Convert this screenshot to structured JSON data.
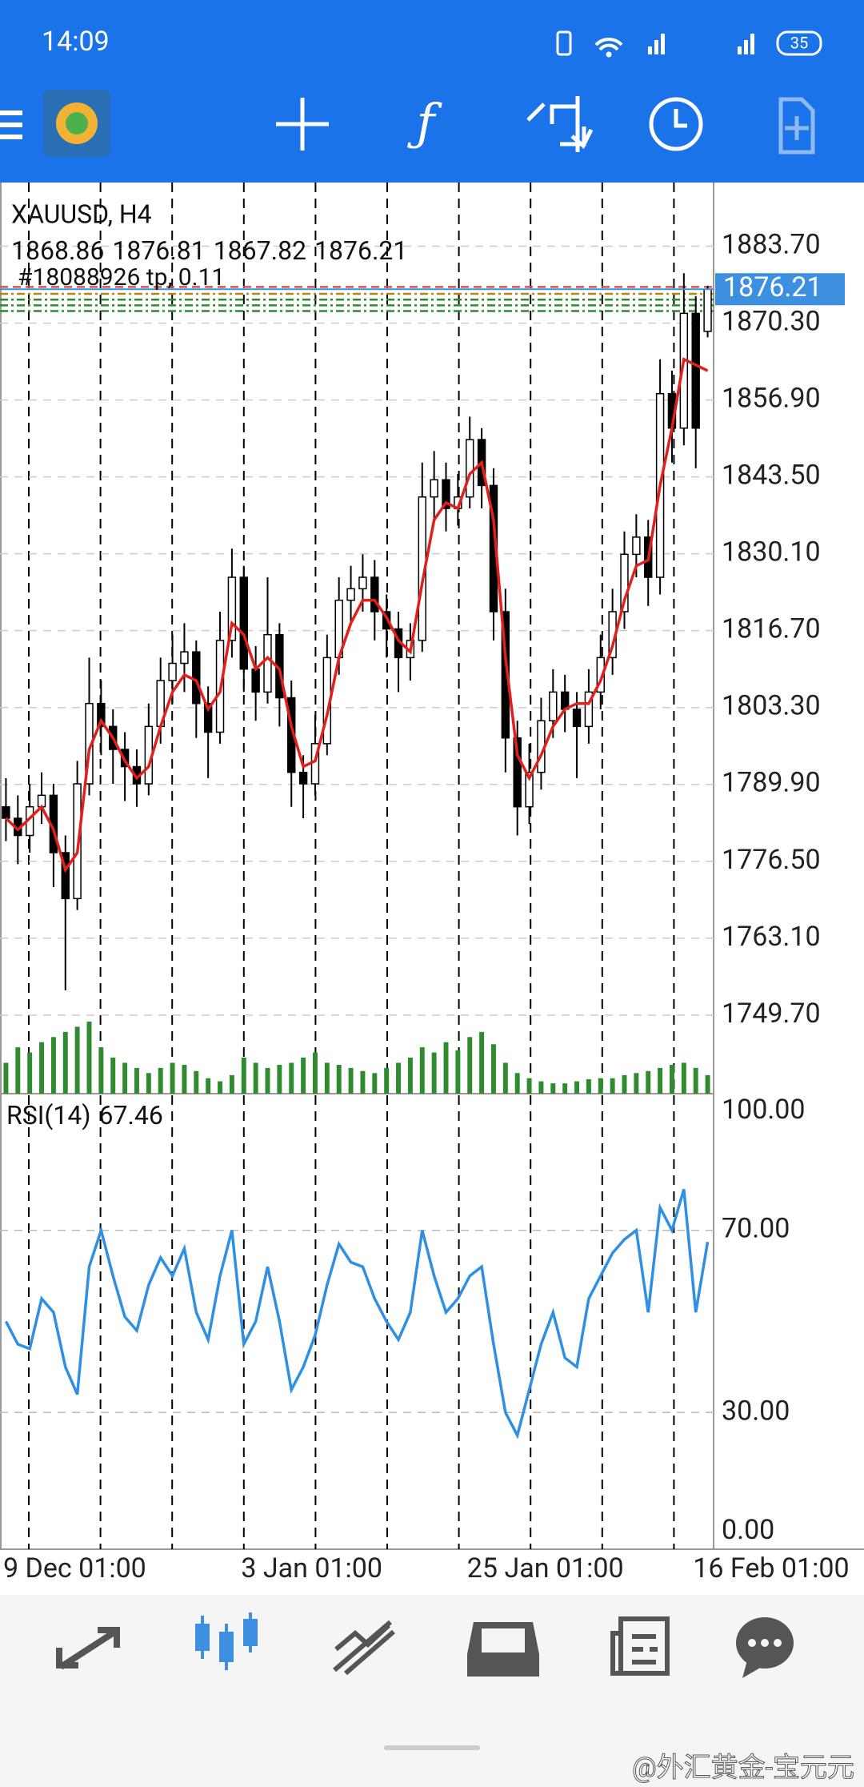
{
  "status_bar": {
    "time": "14:09",
    "battery": "35"
  },
  "chart_data": [
    {
      "type": "candlestick",
      "title": "XAUUSD, H4",
      "order_label": "#18088926 tp, 0.11",
      "categories": [
        "9 Dec 01:00",
        null,
        null,
        null,
        null,
        null,
        null,
        null,
        null,
        null,
        null,
        null,
        null,
        null,
        null,
        null,
        null,
        null,
        null,
        null,
        "3 Jan 01:00",
        null,
        null,
        null,
        null,
        null,
        null,
        null,
        null,
        null,
        null,
        null,
        null,
        null,
        null,
        null,
        null,
        null,
        null,
        "25 Jan 01:00",
        null,
        null,
        null,
        null,
        null,
        null,
        null,
        null,
        null,
        null,
        null,
        null,
        null,
        null,
        null,
        null,
        null,
        null,
        "16 Feb 01:00",
        null
      ],
      "open": [
        1786,
        1784,
        1781,
        1786,
        1788,
        1778,
        1770,
        1790,
        1804,
        1800,
        1796,
        1793,
        1790,
        1800,
        1808,
        1811,
        1813,
        1804,
        1799,
        1815,
        1826,
        1810,
        1806,
        1816,
        1805,
        1792,
        1790,
        1797,
        1812,
        1822,
        1824,
        1826,
        1820,
        1817,
        1812,
        1815,
        1840,
        1843,
        1838,
        1840,
        1850,
        1842,
        1820,
        1798,
        1786,
        1792,
        1801,
        1806,
        1803,
        1800,
        1806,
        1812,
        1820,
        1830,
        1833,
        1826,
        1858,
        1852,
        1872,
        1868.86
      ],
      "high": [
        1791,
        1788,
        1790,
        1792,
        1790,
        1781,
        1794,
        1812,
        1808,
        1803,
        1799,
        1796,
        1804,
        1812,
        1816,
        1818,
        1815,
        1807,
        1820,
        1831,
        1828,
        1814,
        1826,
        1818,
        1808,
        1795,
        1802,
        1816,
        1826,
        1828,
        1830,
        1829,
        1823,
        1820,
        1818,
        1846,
        1848,
        1846,
        1844,
        1854,
        1852,
        1845,
        1824,
        1801,
        1797,
        1805,
        1810,
        1809,
        1806,
        1810,
        1816,
        1824,
        1834,
        1837,
        1836,
        1864,
        1862,
        1879,
        1875,
        1876.81
      ],
      "low": [
        1780,
        1776,
        1778,
        1783,
        1772,
        1754,
        1768,
        1788,
        1795,
        1790,
        1787,
        1786,
        1788,
        1797,
        1804,
        1806,
        1798,
        1791,
        1797,
        1812,
        1806,
        1801,
        1804,
        1800,
        1786,
        1784,
        1788,
        1795,
        1809,
        1818,
        1820,
        1815,
        1812,
        1806,
        1808,
        1813,
        1836,
        1834,
        1835,
        1838,
        1838,
        1815,
        1792,
        1781,
        1783,
        1789,
        1798,
        1799,
        1791,
        1797,
        1803,
        1809,
        1817,
        1826,
        1821,
        1823,
        1846,
        1849,
        1845,
        1867.82
      ],
      "close": [
        1784,
        1781,
        1786,
        1788,
        1778,
        1770,
        1790,
        1804,
        1800,
        1796,
        1793,
        1790,
        1800,
        1808,
        1811,
        1813,
        1804,
        1799,
        1815,
        1826,
        1810,
        1806,
        1816,
        1805,
        1792,
        1790,
        1797,
        1812,
        1822,
        1824,
        1826,
        1820,
        1817,
        1812,
        1815,
        1840,
        1843,
        1838,
        1840,
        1850,
        1842,
        1820,
        1798,
        1786,
        1792,
        1801,
        1806,
        1803,
        1800,
        1806,
        1812,
        1820,
        1830,
        1833,
        1826,
        1858,
        1852,
        1872,
        1852,
        1876.21
      ],
      "candle_color": "#000000",
      "ma": {
        "color": "#e0201b",
        "values": [
          1784,
          1782,
          1784,
          1786,
          1782,
          1775,
          1778,
          1796,
          1801,
          1798,
          1794,
          1791,
          1793,
          1800,
          1806,
          1809,
          1808,
          1803,
          1806,
          1818,
          1816,
          1810,
          1812,
          1810,
          1800,
          1793,
          1794,
          1802,
          1812,
          1818,
          1822,
          1822,
          1819,
          1815,
          1813,
          1825,
          1836,
          1839,
          1838,
          1844,
          1846,
          1836,
          1812,
          1795,
          1791,
          1795,
          1800,
          1803,
          1804,
          1804,
          1808,
          1814,
          1822,
          1828,
          1829,
          1842,
          1852,
          1864,
          1863,
          1862
        ]
      },
      "volume": {
        "color": "#2e8b2e",
        "values": [
          30,
          45,
          40,
          50,
          55,
          60,
          65,
          70,
          45,
          35,
          30,
          25,
          20,
          25,
          30,
          28,
          22,
          15,
          12,
          18,
          35,
          30,
          25,
          28,
          30,
          35,
          40,
          30,
          28,
          25,
          22,
          20,
          25,
          30,
          35,
          45,
          40,
          50,
          42,
          55,
          60,
          48,
          30,
          20,
          15,
          12,
          10,
          10,
          12,
          14,
          15,
          15,
          18,
          20,
          22,
          25,
          28,
          30,
          25,
          18
        ]
      },
      "order_levels": [
        {
          "value": 1876.6,
          "color": "#d9534f"
        },
        {
          "value": 1875.4,
          "color": "#b8860b"
        },
        {
          "value": 1874.4,
          "color": "#2e8b2e"
        },
        {
          "value": 1873.4,
          "color": "#2e8b2e"
        },
        {
          "value": 1872.4,
          "color": "#2e8b2e"
        }
      ],
      "last_price_color": "#3d8fe0",
      "ylim": [
        1736.0,
        1894.8
      ],
      "yticks": [
        {
          "value": 1883.7,
          "label": "1883.70"
        },
        {
          "value": 1870.3,
          "label": "1870.30"
        },
        {
          "value": 1856.9,
          "label": "1856.90"
        },
        {
          "value": 1843.5,
          "label": "1843.50"
        },
        {
          "value": 1830.1,
          "label": "1830.10"
        },
        {
          "value": 1816.7,
          "label": "1816.70"
        },
        {
          "value": 1803.3,
          "label": "1803.30"
        },
        {
          "value": 1789.9,
          "label": "1789.90"
        },
        {
          "value": 1776.5,
          "label": "1776.50"
        },
        {
          "value": 1763.1,
          "label": "1763.10"
        },
        {
          "value": 1749.7,
          "label": "1749.70"
        }
      ],
      "grid": true
    },
    {
      "type": "line",
      "title": "RSI(14)",
      "color": "#2f8fe3",
      "values": [
        50,
        45,
        44,
        55,
        52,
        40,
        34,
        62,
        70,
        60,
        51,
        48,
        58,
        64,
        60,
        66,
        52,
        46,
        60,
        70,
        45,
        50,
        62,
        50,
        35,
        40,
        47,
        58,
        67,
        63,
        62,
        55,
        50,
        46,
        52,
        70,
        60,
        52,
        55,
        60,
        62,
        45,
        30,
        25,
        35,
        45,
        52,
        42,
        40,
        55,
        60,
        65,
        68,
        70,
        52,
        75,
        70,
        79,
        52,
        67.46
      ],
      "ylim": [
        0,
        100
      ],
      "yticks": [
        {
          "value": 100,
          "label": "100.00"
        },
        {
          "value": 70,
          "label": "70.00"
        },
        {
          "value": 30,
          "label": "30.00"
        },
        {
          "value": 0,
          "label": "0.00"
        }
      ],
      "grid": true
    }
  ],
  "watermark": "@外汇黄金-宝元元"
}
